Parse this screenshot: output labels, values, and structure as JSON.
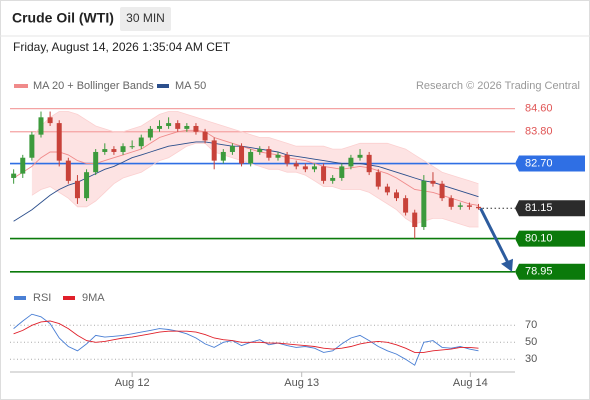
{
  "chart_data": [
    {
      "type": "candlestick",
      "title": "Crude Oil (WTI)",
      "timeframe": "30 MIN",
      "subtitle": "Friday, August 14, 2026 1:35:04 AM CET",
      "source": "Research © 2026 Trading Central",
      "xlim": [
        -0.4,
        55
      ],
      "ylim": [
        78.7,
        84.9
      ],
      "up_color": "#3c9a3c",
      "down_color": "#c8423a",
      "open": [
        82.2,
        82.35,
        82.9,
        83.7,
        84.3,
        84.1,
        82.8,
        82.1,
        81.5,
        82.4,
        83.1,
        83.2,
        83.1,
        83.3,
        83.3,
        83.6,
        83.9,
        84.0,
        84.1,
        83.9,
        84.0,
        83.8,
        83.5,
        82.8,
        83.1,
        83.3,
        82.7,
        83.1,
        83.2,
        82.9,
        83.0,
        82.7,
        82.6,
        82.5,
        82.6,
        82.1,
        82.2,
        82.6,
        82.9,
        83.0,
        82.4,
        81.9,
        81.7,
        81.5,
        81.0,
        80.5,
        82.1,
        82.0,
        81.5,
        81.2,
        81.25,
        81.2
      ],
      "high": [
        82.5,
        83.0,
        83.8,
        84.5,
        84.5,
        84.2,
        82.9,
        82.3,
        82.5,
        83.2,
        83.4,
        83.3,
        83.4,
        83.5,
        83.7,
        84.0,
        84.2,
        84.3,
        84.2,
        84.1,
        84.1,
        83.9,
        83.6,
        83.2,
        83.4,
        83.4,
        83.2,
        83.3,
        83.3,
        83.1,
        83.1,
        82.8,
        82.7,
        82.7,
        82.7,
        82.3,
        82.7,
        83.0,
        83.2,
        83.1,
        82.5,
        82.0,
        81.8,
        81.6,
        81.1,
        82.3,
        82.4,
        82.1,
        81.6,
        81.35,
        81.35,
        81.3
      ],
      "low": [
        82.0,
        82.2,
        82.8,
        83.6,
        84.0,
        82.6,
        82.0,
        81.3,
        81.4,
        82.3,
        83.0,
        83.0,
        83.0,
        83.2,
        83.2,
        83.5,
        83.8,
        83.9,
        83.8,
        83.8,
        83.7,
        83.4,
        82.5,
        82.7,
        83.0,
        82.6,
        82.6,
        83.0,
        82.8,
        82.8,
        82.6,
        82.5,
        82.4,
        82.4,
        82.0,
        82.0,
        82.1,
        82.5,
        82.8,
        82.3,
        81.8,
        81.6,
        81.4,
        80.9,
        80.1,
        80.4,
        81.9,
        81.4,
        81.1,
        81.1,
        81.1,
        81.1
      ],
      "close": [
        82.35,
        82.9,
        83.7,
        84.3,
        84.1,
        82.8,
        82.1,
        81.5,
        82.4,
        83.1,
        83.2,
        83.1,
        83.3,
        83.3,
        83.6,
        83.9,
        84.0,
        84.1,
        83.9,
        84.0,
        83.8,
        83.5,
        82.8,
        83.1,
        83.3,
        82.7,
        83.1,
        83.2,
        82.9,
        83.0,
        82.7,
        82.6,
        82.5,
        82.6,
        82.1,
        82.2,
        82.6,
        82.9,
        83.0,
        82.4,
        81.9,
        81.7,
        81.5,
        81.0,
        80.5,
        82.1,
        82.0,
        81.5,
        81.2,
        81.25,
        81.2,
        81.15
      ],
      "series": [
        {
          "name": "MA 20 + Bollinger Bands",
          "color": "#f08a8a",
          "band_color": "#fde3e3",
          "values": [
            82.2,
            82.4,
            82.6,
            82.9,
            83.1,
            83.1,
            83.0,
            82.8,
            82.7,
            82.7,
            82.8,
            82.9,
            83.0,
            83.1,
            83.2,
            83.4,
            83.6,
            83.7,
            83.8,
            83.85,
            83.85,
            83.8,
            83.6,
            83.5,
            83.4,
            83.3,
            83.2,
            83.1,
            83.05,
            83.0,
            82.9,
            82.85,
            82.8,
            82.7,
            82.6,
            82.55,
            82.5,
            82.55,
            82.6,
            82.55,
            82.45,
            82.35,
            82.2,
            82.0,
            81.8,
            81.75,
            81.7,
            81.6,
            81.5,
            81.4,
            81.3,
            81.25
          ],
          "upper": [
            null,
            null,
            83.6,
            84.0,
            84.3,
            84.5,
            84.5,
            84.4,
            84.2,
            84.0,
            83.9,
            83.8,
            83.8,
            83.9,
            84.0,
            84.2,
            84.4,
            84.5,
            84.5,
            84.4,
            84.3,
            84.2,
            84.1,
            84.0,
            83.9,
            83.8,
            83.7,
            83.6,
            83.6,
            83.5,
            83.4,
            83.3,
            83.3,
            83.3,
            83.3,
            83.2,
            83.2,
            83.3,
            83.4,
            83.4,
            83.4,
            83.4,
            83.3,
            83.2,
            83.0,
            82.8,
            82.6,
            82.4,
            82.3,
            82.2,
            82.1,
            82.0
          ],
          "lower": [
            null,
            null,
            81.6,
            81.8,
            81.9,
            81.7,
            81.5,
            81.2,
            81.2,
            81.4,
            81.7,
            82.0,
            82.2,
            82.3,
            82.4,
            82.6,
            82.8,
            82.9,
            83.1,
            83.3,
            83.4,
            83.4,
            83.1,
            83.0,
            82.9,
            82.8,
            82.7,
            82.6,
            82.5,
            82.5,
            82.4,
            82.4,
            82.3,
            82.1,
            81.9,
            81.9,
            81.8,
            81.8,
            81.8,
            81.7,
            81.5,
            81.3,
            81.1,
            80.8,
            80.6,
            80.7,
            80.8,
            80.8,
            80.7,
            80.6,
            80.5,
            80.5
          ]
        },
        {
          "name": "MA 50",
          "color": "#2c4f8c",
          "values": [
            80.7,
            80.9,
            81.1,
            81.35,
            81.6,
            81.8,
            81.95,
            82.05,
            82.2,
            82.35,
            82.5,
            82.6,
            82.75,
            82.9,
            83.0,
            83.1,
            83.2,
            83.3,
            83.35,
            83.4,
            83.45,
            83.45,
            83.4,
            83.35,
            83.3,
            83.3,
            83.25,
            83.2,
            83.15,
            83.1,
            83.0,
            82.95,
            82.9,
            82.85,
            82.8,
            82.75,
            82.7,
            82.7,
            82.7,
            82.65,
            82.6,
            82.5,
            82.4,
            82.3,
            82.2,
            82.1,
            82.05,
            81.95,
            81.85,
            81.75,
            81.65,
            81.55
          ]
        }
      ],
      "levels": [
        {
          "value": 84.6,
          "label": "84.60",
          "color": "#f4a3a3",
          "boxed": false
        },
        {
          "value": 83.8,
          "label": "83.80",
          "color": "#f4a3a3",
          "boxed": false
        },
        {
          "value": 82.7,
          "label": "82.70",
          "color": "#2f6fe4",
          "boxed": true
        },
        {
          "value": 81.15,
          "label": "81.15",
          "color": "#2b2b2b",
          "boxed": true,
          "dotted": true
        },
        {
          "value": 80.1,
          "label": "80.10",
          "color": "#0b7a0b",
          "boxed": true
        },
        {
          "value": 78.95,
          "label": "78.95",
          "color": "#0b7a0b",
          "boxed": true
        }
      ],
      "arrow_color": "#2d5c9e"
    },
    {
      "type": "line",
      "xlim": [
        -0.4,
        55
      ],
      "ylim": [
        15,
        95
      ],
      "yticks": [
        70,
        50,
        30
      ],
      "xticks": [
        {
          "value": 13,
          "label": "Aug 12"
        },
        {
          "value": 31.6,
          "label": "Aug 13"
        },
        {
          "value": 50.1,
          "label": "Aug 14"
        }
      ],
      "series": [
        {
          "name": "RSI",
          "color": "#4a7fd4",
          "values": [
            66,
            75,
            83,
            80,
            72,
            55,
            45,
            40,
            48,
            58,
            56,
            57,
            58,
            60,
            62,
            64,
            66,
            65,
            63,
            60,
            55,
            48,
            44,
            50,
            52,
            46,
            50,
            53,
            47,
            49,
            46,
            44,
            45,
            43,
            38,
            40,
            48,
            55,
            58,
            52,
            45,
            40,
            36,
            30,
            23,
            50,
            52,
            44,
            43,
            45,
            42,
            40
          ]
        },
        {
          "name": "9MA",
          "color": "#e0202a",
          "values": [
            60,
            64,
            70,
            74,
            75,
            72,
            66,
            58,
            52,
            50,
            51,
            53,
            55,
            56,
            58,
            60,
            62,
            63,
            63,
            63,
            62,
            59,
            55,
            53,
            52,
            50,
            50,
            50,
            49,
            49,
            48,
            47,
            46,
            45,
            43,
            42,
            43,
            45,
            48,
            50,
            51,
            50,
            47,
            43,
            38,
            38,
            40,
            41,
            42,
            44,
            44,
            43
          ]
        }
      ]
    }
  ]
}
